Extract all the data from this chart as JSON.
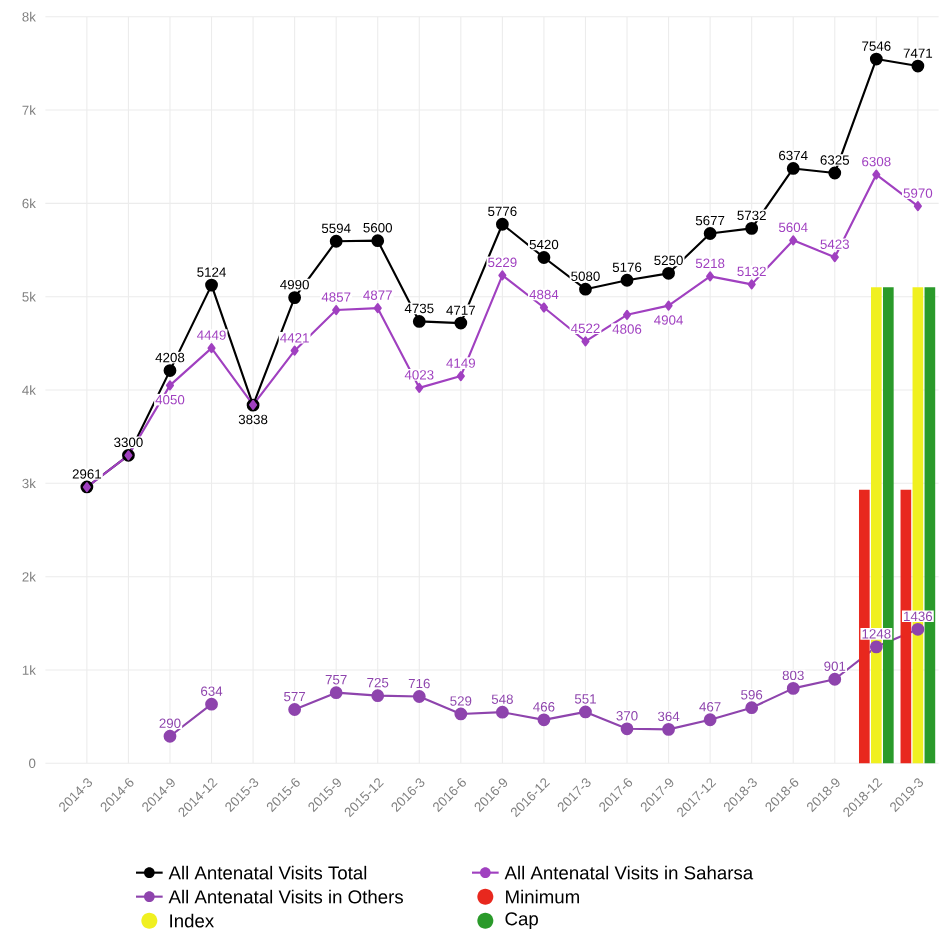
{
  "chart_data": {
    "type": "line",
    "categories": [
      "2014-3",
      "2014-6",
      "2014-9",
      "2014-12",
      "2015-3",
      "2015-6",
      "2015-9",
      "2015-12",
      "2016-3",
      "2016-6",
      "2016-9",
      "2016-12",
      "2017-3",
      "2017-6",
      "2017-9",
      "2017-12",
      "2018-3",
      "2018-6",
      "2018-9",
      "2018-12",
      "2019-3"
    ],
    "series": [
      {
        "name": "All Antenatal Visits Total",
        "color": "#000000",
        "marker": "circle",
        "values": [
          2961,
          3300,
          4208,
          5124,
          3838,
          4990,
          5594,
          5600,
          4735,
          4717,
          5776,
          5420,
          5080,
          5176,
          5250,
          5677,
          5732,
          6374,
          6325,
          7546,
          7471
        ],
        "value_labels": [
          "2961",
          "3300",
          "4208",
          "5124",
          "3838",
          "4990",
          "5594",
          "5600",
          "4735",
          "4717",
          "5776",
          "5420",
          "5080",
          "5176",
          "5250",
          "5677",
          "5732",
          "6374",
          "6325",
          "7546",
          "7471"
        ]
      },
      {
        "name": "All Antenatal Visits in Saharsa",
        "color": "#a040c0",
        "marker": "diamond",
        "values": [
          2960,
          3300,
          4050,
          4449,
          3840,
          4421,
          4857,
          4877,
          4023,
          4149,
          5229,
          4884,
          4522,
          4806,
          4904,
          5218,
          5132,
          5604,
          5423,
          6308,
          5970
        ],
        "value_labels": [
          null,
          null,
          "4050",
          "4449",
          null,
          "4421",
          "4857",
          "4877",
          "4023",
          "4149",
          "5229",
          "4884",
          "4522",
          "4806",
          "4904",
          "5218",
          "5132",
          "5604",
          "5423",
          "6308",
          "5970"
        ]
      },
      {
        "name": "All Antenatal Visits in Others",
        "color": "#8e44ad",
        "marker": "circle",
        "values": [
          null,
          null,
          290,
          634,
          null,
          577,
          757,
          725,
          716,
          529,
          548,
          466,
          551,
          370,
          364,
          467,
          596,
          803,
          901,
          1248,
          1436
        ],
        "value_labels": [
          null,
          null,
          "290",
          "634",
          null,
          "577",
          "757",
          "725",
          "716",
          "529",
          "548",
          "466",
          "551",
          "370",
          "364",
          "467",
          "596",
          "803",
          "901",
          "1248",
          "1436"
        ]
      },
      {
        "name": "Minimum",
        "type": "bar",
        "color": "#e8281e",
        "values": [
          null,
          null,
          null,
          null,
          null,
          null,
          null,
          null,
          null,
          null,
          null,
          null,
          null,
          null,
          null,
          null,
          null,
          null,
          null,
          2930,
          2930
        ]
      },
      {
        "name": "Index",
        "type": "bar",
        "color": "#f0f020",
        "values": [
          null,
          null,
          null,
          null,
          null,
          null,
          null,
          null,
          null,
          null,
          null,
          null,
          null,
          null,
          null,
          null,
          null,
          null,
          null,
          5100,
          5100
        ]
      },
      {
        "name": "Cap",
        "type": "bar",
        "color": "#2a9a2a",
        "values": [
          null,
          null,
          null,
          null,
          null,
          null,
          null,
          null,
          null,
          null,
          null,
          null,
          null,
          null,
          null,
          null,
          null,
          null,
          null,
          5100,
          5100
        ]
      }
    ],
    "ylim": [
      0,
      8000
    ],
    "yticks": [
      {
        "value": 0,
        "label": "0"
      },
      {
        "value": 1000,
        "label": "1k"
      },
      {
        "value": 2000,
        "label": "2k"
      },
      {
        "value": 3000,
        "label": "3k"
      },
      {
        "value": 4000,
        "label": "4k"
      },
      {
        "value": 5000,
        "label": "5k"
      },
      {
        "value": 6000,
        "label": "6k"
      },
      {
        "value": 7000,
        "label": "7k"
      },
      {
        "value": 8000,
        "label": "8k"
      }
    ],
    "grid": true,
    "legend": "bottom"
  }
}
